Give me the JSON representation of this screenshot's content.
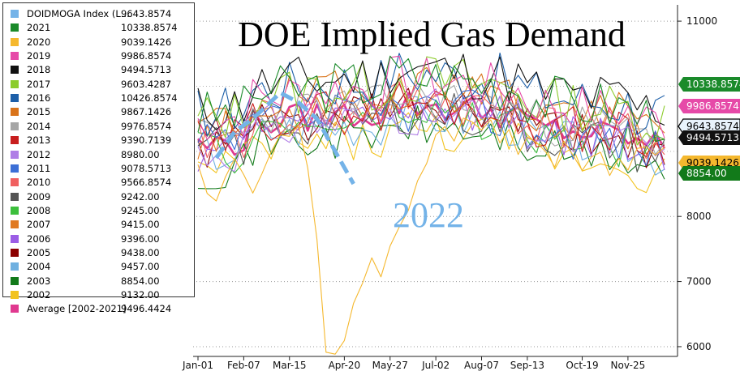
{
  "chart_data": {
    "type": "line",
    "title": "DOE Implied Gas Demand",
    "annotation": "2022",
    "xlabel": "",
    "ylabel": "",
    "x_ticks": [
      "Jan-01",
      "Feb-07",
      "Mar-15",
      "Apr-20",
      "May-27",
      "Jul-02",
      "Aug-07",
      "Sep-13",
      "Oct-19",
      "Nov-25"
    ],
    "y_ticks": [
      6000,
      7000,
      8000,
      11000
    ],
    "ylim": [
      5850,
      11250
    ],
    "grid": "horizontal dotted",
    "legend_position": "top-left",
    "series": [
      {
        "name": "DOIDMOGA Index (L...",
        "value": "9643.8574",
        "tag": "9643.8574",
        "color": "#74b3e8",
        "dashed": true,
        "values": [
          8900,
          9300,
          9500,
          9900,
          9750,
          9500,
          9000,
          8500
        ]
      },
      {
        "name": "2021",
        "value": "10338.8574",
        "tag": "10338.8574",
        "color": "#1a8a2a",
        "base": 9850,
        "amp": 420,
        "seed": 3
      },
      {
        "name": "2020",
        "value": "9039.1426",
        "tag": "9039.1426",
        "color": "#f5b82e",
        "covid": true,
        "seed": 5
      },
      {
        "name": "2019",
        "value": "9986.8574",
        "tag": "9986.8574",
        "color": "#e64aa8",
        "base": 9780,
        "amp": 380,
        "seed": 7
      },
      {
        "name": "2018",
        "value": "9494.5713",
        "tag": "9494.5713",
        "color": "#111111",
        "base": 9950,
        "amp": 420,
        "seed": 11
      },
      {
        "name": "2017",
        "value": "9603.4287",
        "tag": "",
        "color": "#8ccc2c",
        "base": 9800,
        "amp": 420,
        "seed": 13
      },
      {
        "name": "2016",
        "value": "10426.8574",
        "tag": "",
        "color": "#1d5fa8",
        "base": 9900,
        "amp": 420,
        "seed": 17
      },
      {
        "name": "2015",
        "value": "9867.1426",
        "tag": "",
        "color": "#d9731a",
        "base": 9700,
        "amp": 380,
        "seed": 19
      },
      {
        "name": "2014",
        "value": "9976.8574",
        "tag": "",
        "color": "#a6a6a6",
        "base": 9500,
        "amp": 360,
        "seed": 23
      },
      {
        "name": "2013",
        "value": "9390.7139",
        "tag": "",
        "color": "#c81e1e",
        "base": 9450,
        "amp": 360,
        "seed": 29
      },
      {
        "name": "2012",
        "value": "8980.00",
        "tag": "",
        "color": "#b07ee6",
        "base": 9300,
        "amp": 380,
        "seed": 31
      },
      {
        "name": "2011",
        "value": "9078.5713",
        "tag": "",
        "color": "#3c6fd6",
        "base": 9350,
        "amp": 380,
        "seed": 37
      },
      {
        "name": "2010",
        "value": "9566.8574",
        "tag": "",
        "color": "#f06060",
        "base": 9450,
        "amp": 360,
        "seed": 41
      },
      {
        "name": "2009",
        "value": "9242.00",
        "tag": "",
        "color": "#555555",
        "base": 9300,
        "amp": 360,
        "seed": 43
      },
      {
        "name": "2008",
        "value": "9245.00",
        "tag": "",
        "color": "#3cbf3c",
        "base": 9250,
        "amp": 360,
        "seed": 47
      },
      {
        "name": "2007",
        "value": "9415.00",
        "tag": "",
        "color": "#e07a22",
        "base": 9550,
        "amp": 360,
        "seed": 53
      },
      {
        "name": "2006",
        "value": "9396.00",
        "tag": "",
        "color": "#9b5de5",
        "base": 9350,
        "amp": 360,
        "seed": 59
      },
      {
        "name": "2005",
        "value": "9438.00",
        "tag": "",
        "color": "#8b0000",
        "base": 9350,
        "amp": 340,
        "seed": 61
      },
      {
        "name": "2004",
        "value": "9457.00",
        "tag": "",
        "color": "#6fb0e0",
        "base": 9250,
        "amp": 340,
        "seed": 67
      },
      {
        "name": "2003",
        "value": "8854.00",
        "tag": "8854.00",
        "color": "#127a1a",
        "base": 9050,
        "amp": 340,
        "seed": 71
      },
      {
        "name": "2002",
        "value": "9132.00",
        "tag": "",
        "color": "#f2c320",
        "base": 9000,
        "amp": 340,
        "seed": 73
      },
      {
        "name": "Average  [2002-2021]",
        "value": "9496.4424",
        "tag": "",
        "color": "#e0398f",
        "average": true,
        "base": 9400,
        "amp": 230,
        "seed": 79
      }
    ]
  }
}
